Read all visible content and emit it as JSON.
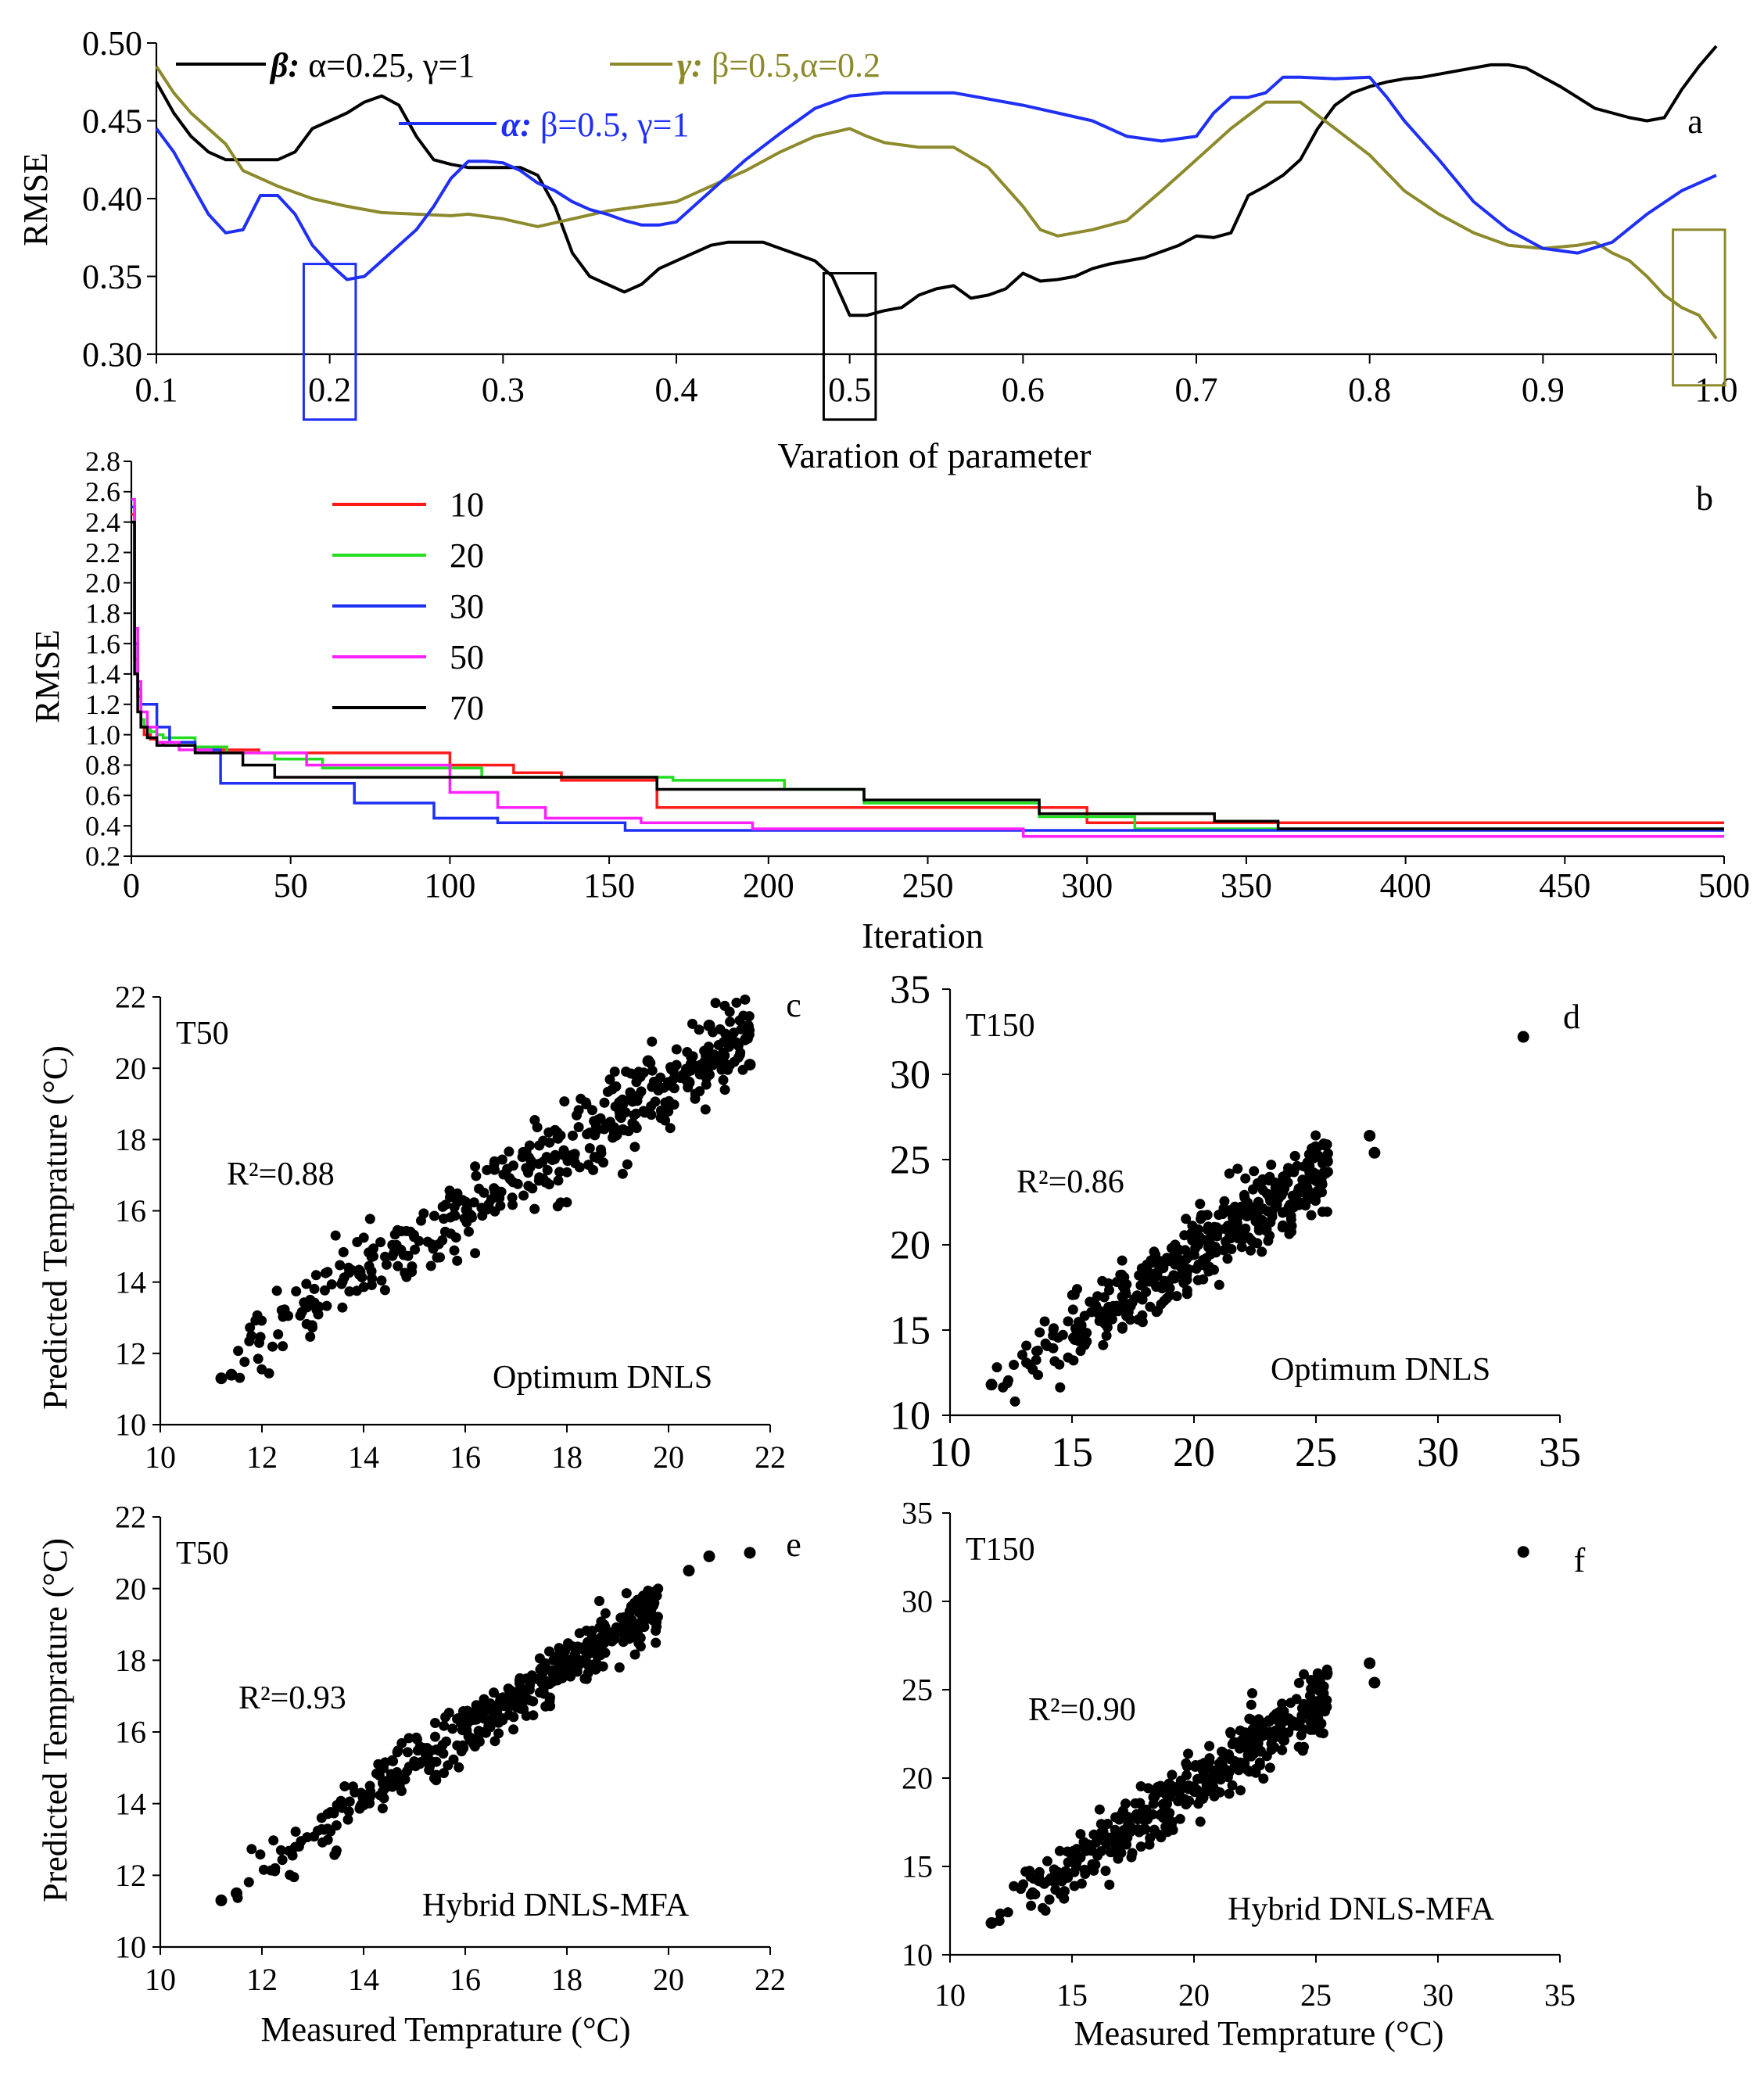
{
  "colors": {
    "black": "#000000",
    "olive": "#8c8a2c",
    "blue": "#1f2ff5",
    "red": "#ff1a1a",
    "green": "#22dd22",
    "magenta": "#ff22ff"
  },
  "chart_data": [
    {
      "id": "a",
      "type": "line",
      "panel_label": "a",
      "xlabel": "Varation of parameter",
      "ylabel": "RMSE",
      "xlim": [
        0.1,
        1.0
      ],
      "ylim": [
        0.3,
        0.5
      ],
      "xticks": [
        "0.1",
        "0.2",
        "0.3",
        "0.4",
        "0.5",
        "0.6",
        "0.7",
        "0.8",
        "0.9",
        "1.0"
      ],
      "yticks": [
        "0.30",
        "0.35",
        "0.40",
        "0.45",
        "0.50"
      ],
      "legend_placement": "top",
      "series": [
        {
          "name": "β:",
          "legend_suffix": " α=0.25, γ=1",
          "color": "#000000",
          "x": [
            0.1,
            0.11,
            0.12,
            0.13,
            0.14,
            0.15,
            0.16,
            0.17,
            0.18,
            0.19,
            0.2,
            0.21,
            0.22,
            0.23,
            0.24,
            0.25,
            0.26,
            0.27,
            0.28,
            0.3,
            0.31,
            0.32,
            0.33,
            0.34,
            0.35,
            0.36,
            0.37,
            0.38,
            0.39,
            0.4,
            0.41,
            0.42,
            0.43,
            0.44,
            0.45,
            0.46,
            0.47,
            0.48,
            0.49,
            0.5,
            0.51,
            0.52,
            0.53,
            0.54,
            0.55,
            0.56,
            0.57,
            0.58,
            0.59,
            0.6,
            0.61,
            0.62,
            0.63,
            0.64,
            0.65,
            0.66,
            0.67,
            0.68,
            0.69,
            0.7,
            0.71,
            0.72,
            0.73,
            0.74,
            0.75,
            0.76,
            0.77,
            0.78,
            0.79,
            0.8,
            0.81,
            0.82,
            0.83,
            0.84,
            0.85,
            0.86,
            0.87,
            0.88,
            0.89,
            0.9,
            0.91,
            0.92,
            0.93,
            0.94,
            0.95,
            0.96,
            0.97,
            0.98,
            0.99,
            1.0
          ],
          "y": [
            0.475,
            0.455,
            0.44,
            0.43,
            0.425,
            0.425,
            0.425,
            0.425,
            0.43,
            0.445,
            0.45,
            0.455,
            0.462,
            0.466,
            0.46,
            0.44,
            0.425,
            0.422,
            0.42,
            0.42,
            0.42,
            0.415,
            0.395,
            0.365,
            0.35,
            0.345,
            0.34,
            0.345,
            0.355,
            0.36,
            0.365,
            0.37,
            0.372,
            0.372,
            0.372,
            0.368,
            0.364,
            0.36,
            0.35,
            0.325,
            0.325,
            0.328,
            0.33,
            0.338,
            0.342,
            0.344,
            0.336,
            0.338,
            0.342,
            0.352,
            0.347,
            0.348,
            0.35,
            0.355,
            0.358,
            0.36,
            0.362,
            0.366,
            0.37,
            0.376,
            0.375,
            0.378,
            0.402,
            0.408,
            0.415,
            0.425,
            0.445,
            0.46,
            0.468,
            0.472,
            0.475,
            0.477,
            0.478,
            0.48,
            0.482,
            0.484,
            0.486,
            0.486,
            0.484,
            0.478,
            0.472,
            0.465,
            0.458,
            0.455,
            0.452,
            0.45,
            0.452,
            0.47,
            0.485,
            0.498
          ]
        },
        {
          "name": "γ:",
          "legend_suffix": " β=0.5,α=0.2",
          "color": "#8c8a2c",
          "x": [
            0.1,
            0.11,
            0.12,
            0.13,
            0.14,
            0.15,
            0.17,
            0.19,
            0.21,
            0.23,
            0.25,
            0.27,
            0.28,
            0.3,
            0.32,
            0.34,
            0.36,
            0.38,
            0.4,
            0.42,
            0.44,
            0.46,
            0.48,
            0.5,
            0.51,
            0.52,
            0.54,
            0.56,
            0.58,
            0.6,
            0.61,
            0.62,
            0.64,
            0.66,
            0.68,
            0.7,
            0.72,
            0.74,
            0.76,
            0.78,
            0.8,
            0.82,
            0.84,
            0.86,
            0.88,
            0.9,
            0.92,
            0.93,
            0.94,
            0.95,
            0.96,
            0.97,
            0.98,
            0.99,
            1.0
          ],
          "y": [
            0.485,
            0.468,
            0.455,
            0.445,
            0.435,
            0.418,
            0.408,
            0.4,
            0.395,
            0.391,
            0.39,
            0.389,
            0.39,
            0.387,
            0.382,
            0.387,
            0.392,
            0.395,
            0.398,
            0.408,
            0.418,
            0.43,
            0.44,
            0.445,
            0.44,
            0.436,
            0.433,
            0.433,
            0.42,
            0.395,
            0.38,
            0.376,
            0.38,
            0.386,
            0.405,
            0.425,
            0.445,
            0.462,
            0.462,
            0.445,
            0.428,
            0.405,
            0.39,
            0.378,
            0.37,
            0.368,
            0.37,
            0.372,
            0.365,
            0.36,
            0.35,
            0.338,
            0.33,
            0.325,
            0.31
          ]
        },
        {
          "name": "α:",
          "legend_suffix": " β=0.5, γ=1",
          "color": "#1f2ff5",
          "x": [
            0.1,
            0.11,
            0.12,
            0.13,
            0.14,
            0.15,
            0.16,
            0.17,
            0.18,
            0.19,
            0.2,
            0.21,
            0.22,
            0.23,
            0.24,
            0.25,
            0.26,
            0.27,
            0.28,
            0.29,
            0.3,
            0.31,
            0.32,
            0.33,
            0.34,
            0.35,
            0.36,
            0.37,
            0.38,
            0.39,
            0.4,
            0.42,
            0.44,
            0.46,
            0.48,
            0.5,
            0.52,
            0.54,
            0.56,
            0.58,
            0.6,
            0.62,
            0.64,
            0.66,
            0.68,
            0.7,
            0.71,
            0.72,
            0.73,
            0.74,
            0.75,
            0.76,
            0.78,
            0.8,
            0.81,
            0.82,
            0.84,
            0.86,
            0.88,
            0.9,
            0.92,
            0.94,
            0.96,
            0.98,
            1.0
          ],
          "y": [
            0.445,
            0.43,
            0.41,
            0.39,
            0.378,
            0.38,
            0.402,
            0.402,
            0.39,
            0.37,
            0.358,
            0.348,
            0.35,
            0.36,
            0.37,
            0.38,
            0.395,
            0.413,
            0.424,
            0.424,
            0.423,
            0.418,
            0.41,
            0.405,
            0.398,
            0.393,
            0.39,
            0.386,
            0.383,
            0.383,
            0.385,
            0.405,
            0.425,
            0.442,
            0.458,
            0.466,
            0.468,
            0.468,
            0.468,
            0.464,
            0.46,
            0.455,
            0.45,
            0.44,
            0.437,
            0.44,
            0.455,
            0.465,
            0.465,
            0.468,
            0.478,
            0.478,
            0.477,
            0.478,
            0.465,
            0.45,
            0.425,
            0.398,
            0.38,
            0.368,
            0.365,
            0.372,
            0.39,
            0.405,
            0.415
          ]
        }
      ],
      "highlight_boxes": [
        {
          "color": "#1f2ff5",
          "x": [
            0.185,
            0.215
          ],
          "y": [
            0.258,
            0.358
          ]
        },
        {
          "color": "#000000",
          "x": [
            0.485,
            0.515
          ],
          "y": [
            0.258,
            0.352
          ]
        },
        {
          "color": "#8c8a2c",
          "x": [
            0.975,
            1.005
          ],
          "y": [
            0.28,
            0.38
          ]
        }
      ]
    },
    {
      "id": "b",
      "type": "line",
      "panel_label": "b",
      "xlabel": "Iteration",
      "ylabel": "RMSE",
      "xlim": [
        0,
        500
      ],
      "ylim": [
        0.2,
        2.8
      ],
      "xticks": [
        "0",
        "50",
        "100",
        "150",
        "200",
        "250",
        "300",
        "350",
        "400",
        "450",
        "500"
      ],
      "yticks": [
        "0.2",
        "0.4",
        "0.6",
        "0.8",
        "1.0",
        "1.2",
        "1.4",
        "1.6",
        "1.8",
        "2.0",
        "2.2",
        "2.4",
        "2.6",
        "2.8"
      ],
      "legend_placement": "top-left",
      "series": [
        {
          "name": "10",
          "color": "#ff1a1a",
          "x": [
            0,
            1,
            2,
            3,
            4,
            6,
            8,
            10,
            20,
            30,
            40,
            100,
            120,
            135,
            165,
            220,
            300,
            310,
            500
          ],
          "y": [
            2.45,
            1.5,
            1.25,
            1.05,
            1.0,
            0.97,
            0.95,
            0.93,
            0.9,
            0.9,
            0.88,
            0.8,
            0.75,
            0.7,
            0.52,
            0.52,
            0.42,
            0.42,
            0.42
          ]
        },
        {
          "name": "20",
          "color": "#22dd22",
          "x": [
            0,
            1,
            2,
            3,
            4,
            6,
            8,
            10,
            20,
            30,
            45,
            60,
            110,
            170,
            205,
            230,
            285,
            315,
            500
          ],
          "y": [
            2.5,
            1.6,
            1.3,
            1.1,
            1.05,
            1.02,
            1.0,
            0.98,
            0.92,
            0.88,
            0.84,
            0.78,
            0.72,
            0.7,
            0.64,
            0.55,
            0.46,
            0.38,
            0.38
          ]
        },
        {
          "name": "30",
          "color": "#1f2ff5",
          "x": [
            0,
            1,
            2,
            3,
            5,
            8,
            12,
            20,
            28,
            40,
            70,
            95,
            115,
            155,
            200,
            500
          ],
          "y": [
            2.5,
            1.6,
            1.3,
            1.2,
            1.2,
            1.05,
            0.95,
            0.9,
            0.68,
            0.68,
            0.55,
            0.45,
            0.42,
            0.37,
            0.37,
            0.37
          ]
        },
        {
          "name": "50",
          "color": "#ff22ff",
          "x": [
            0,
            1,
            2,
            3,
            5,
            8,
            15,
            25,
            55,
            100,
            115,
            130,
            160,
            195,
            280,
            500
          ],
          "y": [
            2.55,
            1.7,
            1.35,
            1.15,
            1.05,
            0.95,
            0.9,
            0.88,
            0.8,
            0.62,
            0.52,
            0.45,
            0.42,
            0.38,
            0.33,
            0.33
          ]
        },
        {
          "name": "70",
          "color": "#000000",
          "x": [
            0,
            1,
            2,
            3,
            5,
            8,
            20,
            35,
            45,
            100,
            165,
            230,
            285,
            340,
            360,
            500
          ],
          "y": [
            2.4,
            1.4,
            1.15,
            1.05,
            0.98,
            0.93,
            0.88,
            0.8,
            0.72,
            0.72,
            0.64,
            0.57,
            0.48,
            0.43,
            0.38,
            0.38
          ]
        }
      ]
    },
    {
      "id": "c",
      "type": "scatter",
      "panel_label": "c",
      "inset_title": "T50",
      "annotation": "R²=0.88",
      "method": "Optimum DNLS",
      "ylabel": "Predicted Temprature (°C)",
      "xlim": [
        10,
        22
      ],
      "ylim": [
        10,
        22
      ],
      "xticks": [
        "10",
        "12",
        "14",
        "16",
        "18",
        "20",
        "22"
      ],
      "yticks": [
        "10",
        "12",
        "14",
        "16",
        "18",
        "20",
        "22"
      ],
      "cloud": {
        "x_range": [
          11.2,
          21.6
        ],
        "slope": 0.88,
        "intercept": 1.9,
        "spread": 0.55,
        "points": 420
      },
      "extra_points": [
        [
          20.8,
          21.2
        ],
        [
          21.6,
          20.1
        ],
        [
          19.6,
          20.2
        ],
        [
          20.4,
          19.6
        ],
        [
          11.2,
          11.3
        ],
        [
          11.4,
          11.4
        ]
      ]
    },
    {
      "id": "d",
      "type": "scatter",
      "panel_label": "d",
      "inset_title": "T150",
      "annotation": "R²=0.86",
      "method": "Optimum DNLS",
      "xlim": [
        10,
        35
      ],
      "ylim": [
        10,
        35
      ],
      "xticks": [
        "10",
        "15",
        "20",
        "25",
        "30",
        "35"
      ],
      "yticks": [
        "10",
        "15",
        "20",
        "25",
        "30",
        "35"
      ],
      "cloud": {
        "x_range": [
          11.7,
          25.5
        ],
        "slope": 0.88,
        "intercept": 1.9,
        "spread": 1.05,
        "points": 420
      },
      "extra_points": [
        [
          33.5,
          32.2
        ],
        [
          27.2,
          26.4
        ],
        [
          27.4,
          25.4
        ],
        [
          11.7,
          11.8
        ]
      ]
    },
    {
      "id": "e",
      "type": "scatter",
      "panel_label": "e",
      "inset_title": "T50",
      "annotation": "R²=0.93",
      "method": "Hybrid DNLS-MFA",
      "xlabel": "Measured Temprature (°C)",
      "ylabel": "Predicted Temprature (°C)",
      "xlim": [
        10,
        22
      ],
      "ylim": [
        10,
        22
      ],
      "xticks": [
        "10",
        "12",
        "14",
        "16",
        "18",
        "20",
        "22"
      ],
      "yticks": [
        "10",
        "12",
        "14",
        "16",
        "18",
        "20",
        "22"
      ],
      "cloud": {
        "x_range": [
          11.2,
          19.8
        ],
        "slope": 0.92,
        "intercept": 1.3,
        "spread": 0.4,
        "points": 420
      },
      "extra_points": [
        [
          20.4,
          20.5
        ],
        [
          20.8,
          20.9
        ],
        [
          21.6,
          21.0
        ],
        [
          11.2,
          11.3
        ],
        [
          11.5,
          11.5
        ]
      ]
    },
    {
      "id": "f",
      "type": "scatter",
      "panel_label": "f",
      "inset_title": "T150",
      "annotation": "R²=0.90",
      "method": "Hybrid DNLS-MFA",
      "xlabel": "Measured Temprature (°C)",
      "xlim": [
        10,
        35
      ],
      "ylim": [
        10,
        35
      ],
      "xticks": [
        "10",
        "15",
        "20",
        "25",
        "30",
        "35"
      ],
      "yticks": [
        "10",
        "15",
        "20",
        "25",
        "30",
        "35"
      ],
      "cloud": {
        "x_range": [
          11.7,
          25.5
        ],
        "slope": 0.9,
        "intercept": 1.6,
        "spread": 0.85,
        "points": 420
      },
      "extra_points": [
        [
          33.5,
          32.8
        ],
        [
          27.2,
          26.5
        ],
        [
          27.4,
          25.4
        ],
        [
          11.7,
          11.8
        ]
      ]
    }
  ]
}
